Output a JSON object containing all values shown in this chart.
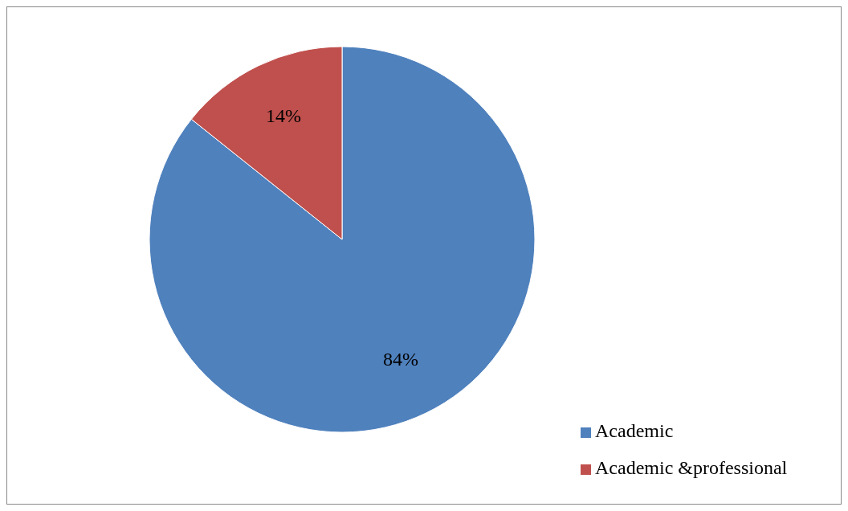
{
  "chart_data": {
    "type": "pie",
    "categories": [
      "Academic",
      "Academic &professional"
    ],
    "values": [
      84,
      14
    ],
    "colors": [
      "#4f81bd",
      "#c0504d"
    ],
    "value_labels": [
      "84%",
      "14%"
    ],
    "legend": "bottom right"
  }
}
